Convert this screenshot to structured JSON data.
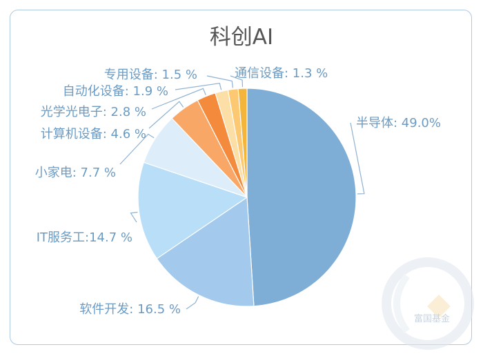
{
  "colors": {
    "frame": "#aec8e2",
    "label": "#6a9bc4",
    "leader": "#8fb1d2",
    "title": "#555555"
  },
  "watermark": {
    "text": "富国基金"
  },
  "chart_data": {
    "type": "pie",
    "title": "科创AI",
    "legend": "none",
    "slices": [
      {
        "name": "半导体",
        "value": 49.0,
        "display": "半导体: 49.0%",
        "color": "#7eadd6"
      },
      {
        "name": "软件开发",
        "value": 16.5,
        "display": "软件开发: 16.5 %",
        "color": "#a3c9ec"
      },
      {
        "name": "IT服务工",
        "value": 14.7,
        "display": "IT服务工:14.7 %",
        "color": "#b9def8"
      },
      {
        "name": "小家电",
        "value": 7.7,
        "display": "小家电: 7.7 %",
        "color": "#ddeefa"
      },
      {
        "name": "计算机设备",
        "value": 4.6,
        "display": "计算机设备: 4.6 %",
        "color": "#f9a767"
      },
      {
        "name": "光学光电子",
        "value": 2.8,
        "display": "光学光电子: 2.8 %",
        "color": "#f48a3c"
      },
      {
        "name": "自动化设备",
        "value": 1.9,
        "display": "自动化设备: 1.9 %",
        "color": "#fcdfa6"
      },
      {
        "name": "专用设备",
        "value": 1.5,
        "display": "专用设备: 1.5 %",
        "color": "#fcc972"
      },
      {
        "name": "通信设备",
        "value": 1.3,
        "display": "通信设备: 1.3 %",
        "color": "#f3b53c"
      }
    ]
  }
}
